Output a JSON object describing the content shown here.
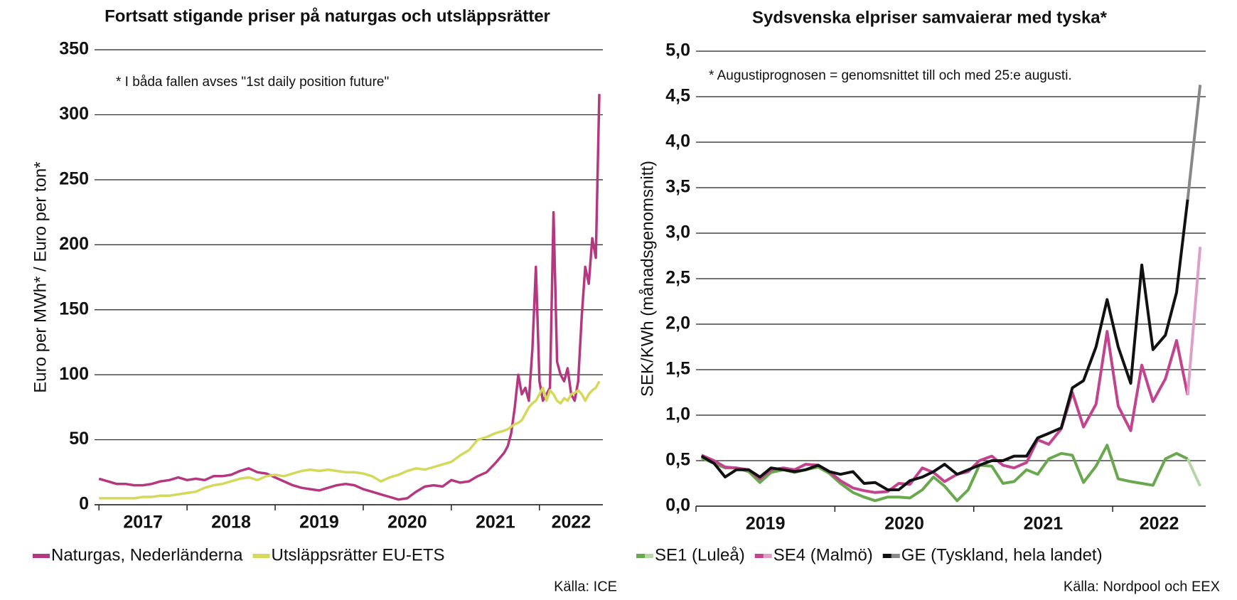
{
  "chart_data": [
    {
      "type": "line",
      "title": "Fortsatt stigande priser på naturgas och utsläppsrätter",
      "ylabel": "Euro per MWh*  /  Euro per ton*",
      "annotation": "* I båda fallen avses \"1st daily position future\"",
      "source": "Källa: ICE",
      "xlim": [
        2016.95,
        2022.72
      ],
      "xticks": [
        2017,
        2018,
        2019,
        2020,
        2021,
        2022
      ],
      "ylim": [
        0,
        350
      ],
      "yticks": [
        0,
        50,
        100,
        150,
        200,
        250,
        300,
        350
      ],
      "grid": true,
      "x": [
        2017.0,
        2017.1,
        2017.2,
        2017.3,
        2017.4,
        2017.5,
        2017.6,
        2017.7,
        2017.8,
        2017.9,
        2018.0,
        2018.1,
        2018.2,
        2018.3,
        2018.4,
        2018.5,
        2018.6,
        2018.7,
        2018.8,
        2018.9,
        2019.0,
        2019.1,
        2019.2,
        2019.3,
        2019.4,
        2019.5,
        2019.6,
        2019.7,
        2019.8,
        2019.9,
        2020.0,
        2020.1,
        2020.2,
        2020.3,
        2020.4,
        2020.5,
        2020.6,
        2020.7,
        2020.8,
        2020.9,
        2021.0,
        2021.1,
        2021.2,
        2021.3,
        2021.4,
        2021.5,
        2021.6,
        2021.64,
        2021.68,
        2021.72,
        2021.76,
        2021.8,
        2021.84,
        2021.88,
        2021.92,
        2021.96,
        2022.0,
        2022.04,
        2022.08,
        2022.12,
        2022.16,
        2022.2,
        2022.24,
        2022.28,
        2022.32,
        2022.36,
        2022.4,
        2022.44,
        2022.48,
        2022.52,
        2022.56,
        2022.6,
        2022.64,
        2022.68
      ],
      "series": [
        {
          "name": "Naturgas, Nederländerna",
          "color": "#b5377f",
          "values": [
            20,
            18,
            16,
            16,
            15,
            15,
            16,
            18,
            19,
            21,
            19,
            20,
            19,
            22,
            22,
            23,
            26,
            28,
            25,
            24,
            21,
            18,
            15,
            13,
            12,
            11,
            13,
            15,
            16,
            15,
            12,
            10,
            8,
            6,
            4,
            5,
            10,
            14,
            15,
            14,
            19,
            17,
            18,
            22,
            25,
            32,
            40,
            45,
            55,
            75,
            100,
            85,
            90,
            80,
            120,
            183,
            95,
            80,
            85,
            90,
            225,
            110,
            100,
            95,
            105,
            85,
            80,
            95,
            145,
            183,
            170,
            205,
            190,
            316
          ]
        },
        {
          "name": "Utsläppsrätter EU-ETS",
          "color": "#d4d95c",
          "values": [
            5,
            5,
            5,
            5,
            5,
            6,
            6,
            7,
            7,
            8,
            9,
            10,
            13,
            15,
            16,
            18,
            20,
            21,
            19,
            22,
            23,
            22,
            24,
            26,
            27,
            26,
            27,
            26,
            25,
            25,
            24,
            22,
            18,
            21,
            23,
            26,
            28,
            27,
            29,
            31,
            33,
            38,
            42,
            50,
            52,
            55,
            57,
            58,
            60,
            62,
            63,
            65,
            70,
            75,
            78,
            80,
            85,
            90,
            80,
            88,
            85,
            80,
            78,
            82,
            80,
            85,
            86,
            88,
            85,
            80,
            85,
            88,
            90,
            95
          ]
        }
      ]
    },
    {
      "type": "line",
      "title": "Sydsvenska elpriser samvaierar med tyska*",
      "ylabel": "SEK/KWh (månadsgenomsnitt)",
      "annotation": "* Augustiprognosen = genomsnittet till och med 25:e augusti.",
      "source": "Källa: Nordpool och EEX",
      "xlim": [
        2019,
        2022.67
      ],
      "xticks": [
        2019,
        2020,
        2021,
        2022
      ],
      "ylim": [
        0,
        5
      ],
      "yticks": [
        {
          "value": 0,
          "label": "0,0"
        },
        {
          "value": 0.5,
          "label": "0,5"
        },
        {
          "value": 1,
          "label": "1,0"
        },
        {
          "value": 1.5,
          "label": "1,5"
        },
        {
          "value": 2,
          "label": "2,0"
        },
        {
          "value": 2.5,
          "label": "2,5"
        },
        {
          "value": 3,
          "label": "3,0"
        },
        {
          "value": 3.5,
          "label": "3,5"
        },
        {
          "value": 4,
          "label": "4,0"
        },
        {
          "value": 4.5,
          "label": "4,5"
        },
        {
          "value": 5,
          "label": "5,0"
        }
      ],
      "grid": true,
      "x": [
        2019.04,
        2019.13,
        2019.21,
        2019.29,
        2019.38,
        2019.46,
        2019.54,
        2019.63,
        2019.71,
        2019.79,
        2019.88,
        2019.96,
        2020.04,
        2020.13,
        2020.21,
        2020.29,
        2020.38,
        2020.46,
        2020.54,
        2020.63,
        2020.71,
        2020.79,
        2020.88,
        2020.96,
        2021.04,
        2021.13,
        2021.21,
        2021.29,
        2021.38,
        2021.46,
        2021.54,
        2021.63,
        2021.71,
        2021.79,
        2021.88,
        2021.96,
        2022.04,
        2022.13,
        2022.21,
        2022.29,
        2022.38,
        2022.46,
        2022.54,
        2022.63
      ],
      "series": [
        {
          "name": "SE1 (Luleå)",
          "color": "#6aa84f",
          "forecast_color": "#b6d7a8",
          "values": [
            0.53,
            0.47,
            0.42,
            0.42,
            0.38,
            0.26,
            0.37,
            0.4,
            0.37,
            0.4,
            0.43,
            0.36,
            0.25,
            0.15,
            0.1,
            0.06,
            0.1,
            0.1,
            0.09,
            0.18,
            0.32,
            0.22,
            0.06,
            0.18,
            0.45,
            0.44,
            0.25,
            0.27,
            0.4,
            0.35,
            0.52,
            0.58,
            0.56,
            0.26,
            0.44,
            0.67,
            0.3,
            0.27,
            0.25,
            0.23,
            0.52,
            0.58,
            0.52,
            0.22
          ]
        },
        {
          "name": "SE4 (Malmö)",
          "color": "#c2448f",
          "forecast_color": "#dda0c8",
          "values": [
            0.56,
            0.5,
            0.43,
            0.42,
            0.4,
            0.3,
            0.4,
            0.42,
            0.4,
            0.46,
            0.45,
            0.38,
            0.28,
            0.2,
            0.17,
            0.15,
            0.16,
            0.25,
            0.24,
            0.42,
            0.37,
            0.27,
            0.35,
            0.38,
            0.5,
            0.55,
            0.45,
            0.42,
            0.48,
            0.73,
            0.68,
            0.85,
            1.25,
            0.87,
            1.12,
            1.92,
            1.1,
            0.83,
            1.55,
            1.15,
            1.4,
            1.82,
            1.22,
            2.85
          ]
        },
        {
          "name": "GE (Tyskland, hela landet)",
          "color": "#111111",
          "forecast_color": "#888888",
          "values": [
            0.55,
            0.47,
            0.32,
            0.4,
            0.4,
            0.32,
            0.42,
            0.4,
            0.38,
            0.4,
            0.45,
            0.38,
            0.35,
            0.38,
            0.25,
            0.26,
            0.18,
            0.18,
            0.28,
            0.32,
            0.38,
            0.46,
            0.35,
            0.4,
            0.45,
            0.5,
            0.5,
            0.55,
            0.55,
            0.75,
            0.8,
            0.86,
            1.3,
            1.38,
            1.75,
            2.27,
            1.75,
            1.35,
            2.65,
            1.72,
            1.88,
            2.35,
            3.37,
            4.63
          ]
        }
      ]
    }
  ]
}
